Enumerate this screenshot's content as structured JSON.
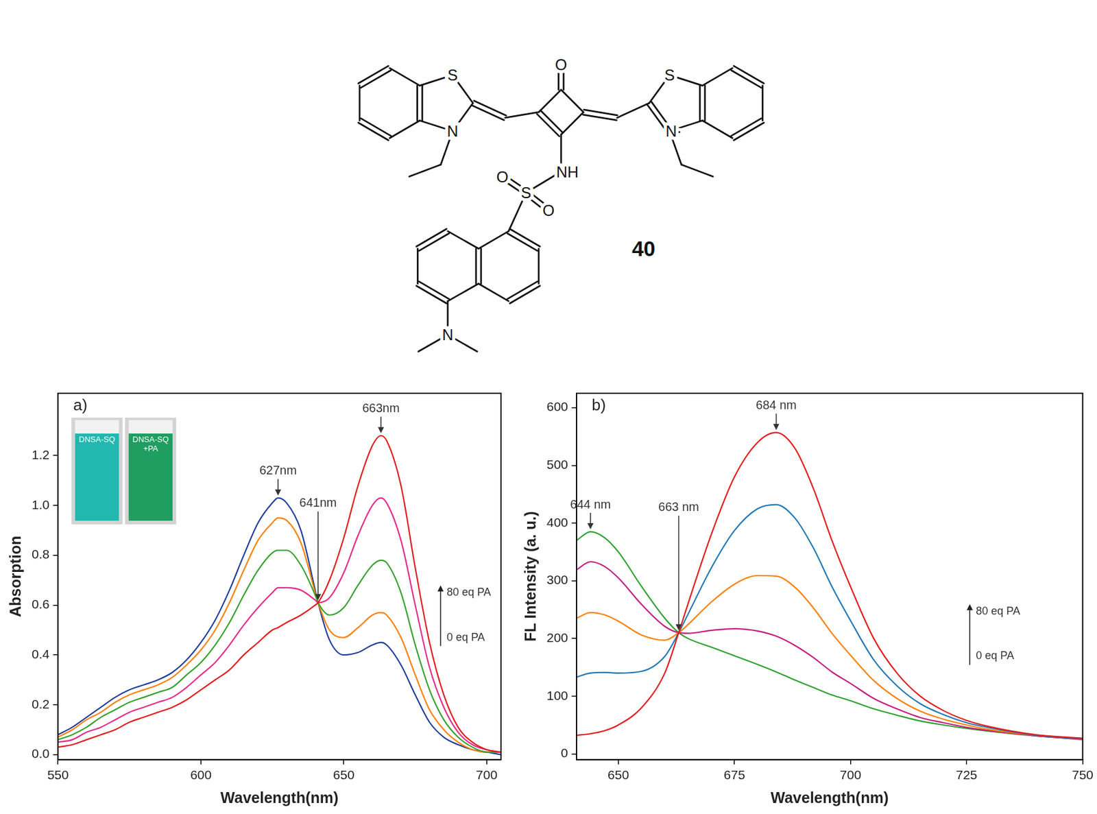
{
  "structure": {
    "compound": "40",
    "atoms": {
      "carbonyl_O": "O",
      "left_S": "S",
      "left_N": "N",
      "right_S": "S",
      "right_N": "N·",
      "amide_N": "NH",
      "sulfonyl_S": "S",
      "sulfonyl_O1": "O",
      "sulfonyl_O2": "O",
      "amine_N": "N"
    }
  },
  "chart_data": [
    {
      "type": "line",
      "panel_label": "a)",
      "x_label": "Wavelength(nm)",
      "y_label": "Absorption",
      "x": [
        550,
        555,
        560,
        565,
        570,
        575,
        580,
        585,
        590,
        595,
        600,
        605,
        610,
        615,
        620,
        625,
        627,
        630,
        635,
        640,
        641,
        645,
        650,
        655,
        660,
        663,
        665,
        670,
        675,
        680,
        685,
        690,
        695,
        700,
        705
      ],
      "series": [
        {
          "color": "#e31a1c",
          "values": [
            0.03,
            0.04,
            0.06,
            0.08,
            0.1,
            0.13,
            0.15,
            0.17,
            0.19,
            0.22,
            0.26,
            0.3,
            0.34,
            0.4,
            0.45,
            0.5,
            0.51,
            0.53,
            0.56,
            0.6,
            0.61,
            0.7,
            0.87,
            1.08,
            1.24,
            1.28,
            1.26,
            1.08,
            0.75,
            0.45,
            0.24,
            0.11,
            0.05,
            0.02,
            0.01
          ]
        },
        {
          "color": "#e7298a",
          "values": [
            0.05,
            0.06,
            0.09,
            0.11,
            0.14,
            0.17,
            0.19,
            0.21,
            0.23,
            0.27,
            0.32,
            0.37,
            0.44,
            0.52,
            0.59,
            0.65,
            0.67,
            0.67,
            0.66,
            0.62,
            0.61,
            0.63,
            0.73,
            0.88,
            1.0,
            1.03,
            1.01,
            0.86,
            0.6,
            0.35,
            0.19,
            0.09,
            0.04,
            0.02,
            0.01
          ]
        },
        {
          "color": "#33a02c",
          "values": [
            0.06,
            0.08,
            0.11,
            0.15,
            0.18,
            0.21,
            0.23,
            0.25,
            0.27,
            0.32,
            0.37,
            0.44,
            0.53,
            0.64,
            0.74,
            0.81,
            0.82,
            0.82,
            0.76,
            0.64,
            0.61,
            0.56,
            0.59,
            0.68,
            0.76,
            0.78,
            0.77,
            0.65,
            0.44,
            0.26,
            0.14,
            0.07,
            0.03,
            0.01,
            0.01
          ]
        },
        {
          "color": "#ff7f00",
          "values": [
            0.07,
            0.1,
            0.14,
            0.17,
            0.21,
            0.24,
            0.26,
            0.28,
            0.31,
            0.36,
            0.42,
            0.5,
            0.61,
            0.74,
            0.86,
            0.93,
            0.95,
            0.94,
            0.85,
            0.65,
            0.61,
            0.5,
            0.47,
            0.51,
            0.56,
            0.57,
            0.56,
            0.47,
            0.32,
            0.18,
            0.1,
            0.05,
            0.02,
            0.01,
            0.01
          ]
        },
        {
          "color": "#1f3c99",
          "values": [
            0.08,
            0.11,
            0.15,
            0.19,
            0.23,
            0.26,
            0.28,
            0.3,
            0.33,
            0.38,
            0.45,
            0.54,
            0.66,
            0.8,
            0.93,
            1.01,
            1.03,
            1.01,
            0.9,
            0.66,
            0.61,
            0.46,
            0.4,
            0.41,
            0.44,
            0.45,
            0.44,
            0.36,
            0.24,
            0.13,
            0.07,
            0.04,
            0.02,
            0.01,
            0.0
          ]
        }
      ],
      "xlim": [
        550,
        705
      ],
      "xticks": [
        550,
        600,
        650,
        700
      ],
      "ylim": [
        -0.02,
        1.45
      ],
      "yticks": [
        {
          "value": 0,
          "label": "0.0"
        },
        0.2,
        0.4,
        0.6,
        0.8,
        {
          "value": 1,
          "label": "1.0"
        },
        1.2
      ],
      "grid": false,
      "annotations": [
        {
          "text": "627nm",
          "x": 627,
          "y": 1.03
        },
        {
          "text": "641nm",
          "x": 641,
          "y": 0.61
        },
        {
          "text": "663nm",
          "x": 663,
          "y": 1.28
        }
      ],
      "titration": {
        "from": {
          "text": "0 eq PA",
          "x": 686,
          "y": 0.47
        },
        "to": {
          "text": "80 eq PA",
          "x": 686,
          "y": 0.65
        }
      },
      "inset": {
        "labels": [
          "DNSA-SQ",
          "DNSA-SQ +PA"
        ],
        "colors": [
          "#22b8b0",
          "#1e9e60"
        ]
      }
    },
    {
      "type": "line",
      "panel_label": "b)",
      "x_label": "Wavelength(nm)",
      "y_label": "FL Intensity (a. u.)",
      "x": [
        641,
        644,
        647,
        650,
        655,
        660,
        663,
        665,
        670,
        675,
        680,
        684,
        688,
        692,
        696,
        700,
        705,
        710,
        715,
        720,
        725,
        730,
        740,
        750
      ],
      "series": [
        {
          "color": "#e31a1c",
          "values": [
            32,
            35,
            40,
            50,
            80,
            140,
            210,
            260,
            380,
            480,
            540,
            557,
            530,
            460,
            370,
            290,
            200,
            140,
            100,
            75,
            58,
            47,
            33,
            27
          ]
        },
        {
          "color": "#1f78b4",
          "values": [
            133,
            140,
            141,
            140,
            143,
            169,
            210,
            242,
            322,
            387,
            425,
            432,
            409,
            357,
            290,
            231,
            163,
            118,
            87,
            68,
            54,
            45,
            32,
            26
          ]
        },
        {
          "color": "#ff7f00",
          "values": [
            235,
            245,
            241,
            230,
            206,
            197,
            210,
            224,
            263,
            294,
            309,
            308,
            289,
            253,
            209,
            171,
            127,
            96,
            74,
            60,
            50,
            42,
            32,
            26
          ]
        },
        {
          "color": "#c51b7d",
          "values": [
            319,
            333,
            325,
            305,
            259,
            221,
            210,
            209,
            214,
            217,
            213,
            204,
            188,
            167,
            142,
            122,
            96,
            78,
            63,
            54,
            46,
            40,
            31,
            25
          ]
        },
        {
          "color": "#2ca02c",
          "values": [
            370,
            385,
            375,
            350,
            290,
            235,
            210,
            200,
            185,
            170,
            155,
            142,
            128,
            115,
            102,
            92,
            78,
            67,
            57,
            50,
            44,
            39,
            31,
            25
          ]
        }
      ],
      "xlim": [
        641,
        750
      ],
      "xticks": [
        650,
        675,
        700,
        725,
        750
      ],
      "ylim": [
        -10,
        625
      ],
      "yticks": [
        0,
        100,
        200,
        300,
        400,
        500,
        600
      ],
      "grid": false,
      "annotations": [
        {
          "text": "644 nm",
          "x": 644,
          "y": 385
        },
        {
          "text": "663 nm",
          "x": 663,
          "y": 210
        },
        {
          "text": "684 nm",
          "x": 684,
          "y": 557
        }
      ],
      "titration": {
        "from": {
          "text": "0 eq PA",
          "x": 727,
          "y": 169
        },
        "to": {
          "text": "80 eq PA",
          "x": 727,
          "y": 247
        }
      }
    }
  ]
}
